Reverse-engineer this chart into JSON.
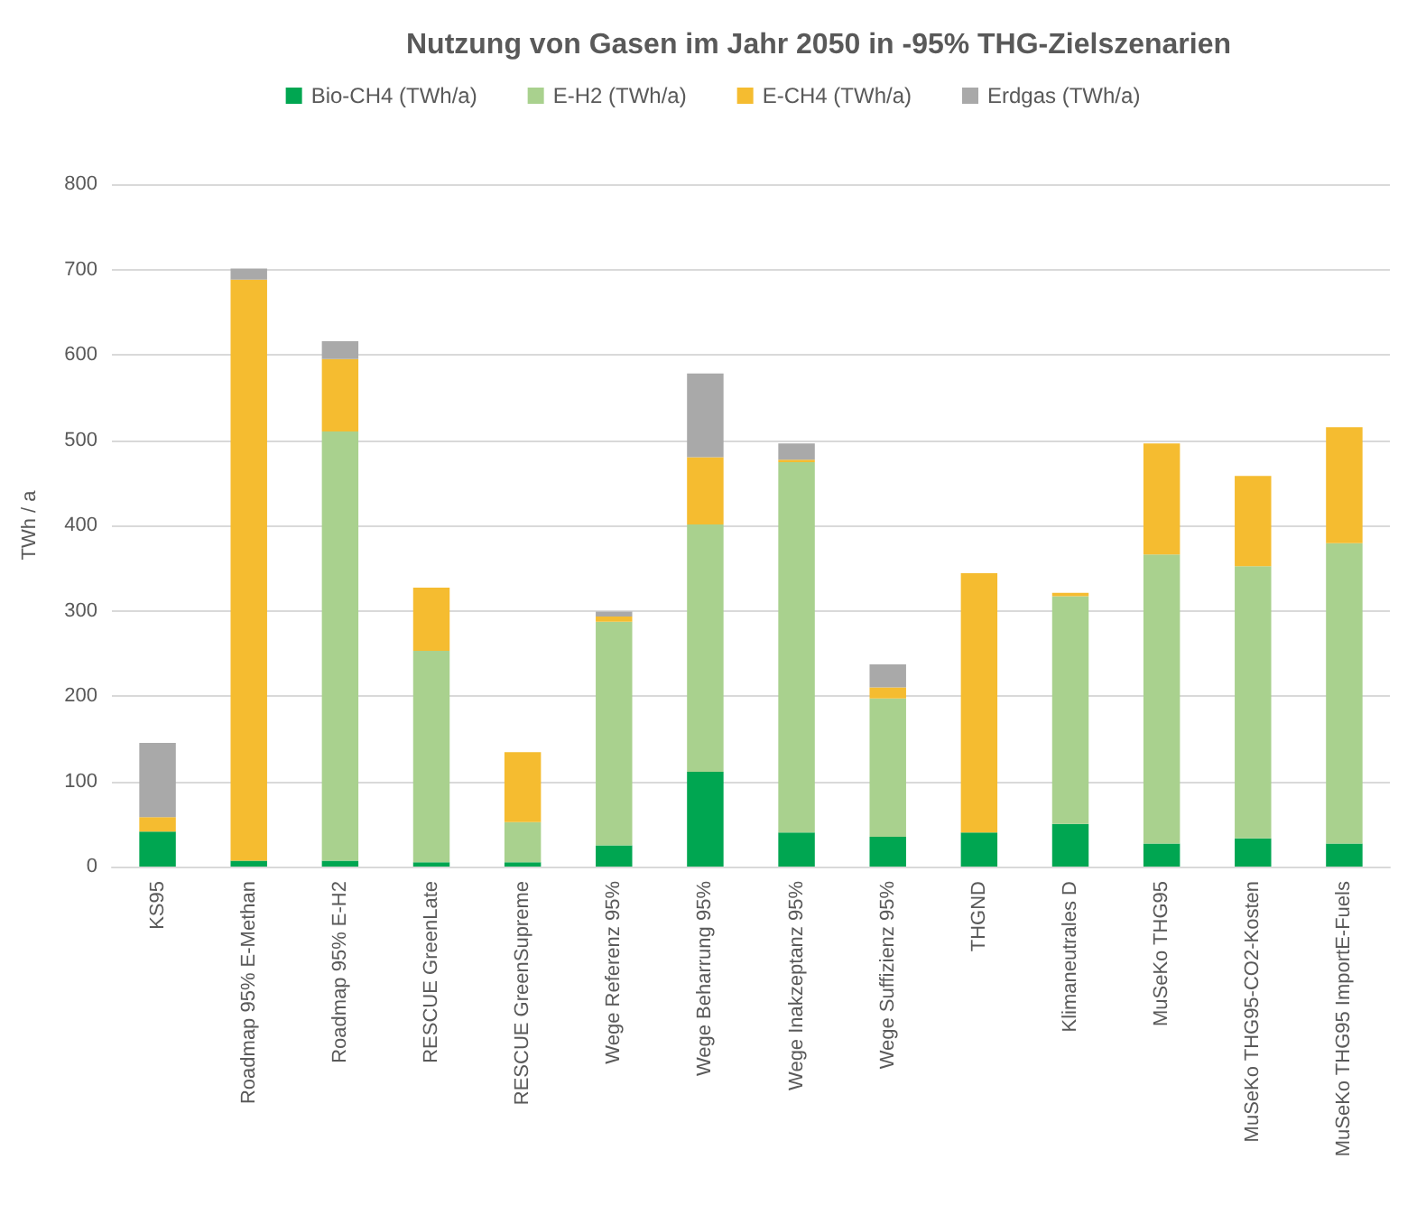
{
  "chart_data": {
    "type": "bar",
    "stacked": true,
    "title": "Nutzung von Gasen im Jahr 2050 in -95% THG-Zielszenarien",
    "ylabel": "TWh / a",
    "categories": [
      "KS95",
      "Roadmap 95% E-Methan",
      "Roadmap 95% E-H2",
      "RESCUE GreenLate",
      "RESCUE GreenSupreme",
      "Wege Referenz 95%",
      "Wege Beharrung 95%",
      "Wege Inakzeptanz 95%",
      "Wege Suffizienz 95%",
      "THGND",
      "Klimaneutrales D",
      "MuSeKo THG95",
      "MuSeKo THG95-CO2-Kosten",
      "MuSeKo THG95 ImportE-Fuels"
    ],
    "series": [
      {
        "name": "Bio-CH4 (TWh/a)",
        "color": "#00a651",
        "values": [
          41,
          7,
          7,
          5,
          5,
          25,
          111,
          40,
          35,
          40,
          50,
          27,
          33,
          27
        ]
      },
      {
        "name": "E-H2 (TWh/a)",
        "color": "#a9d18e",
        "values": [
          0,
          0,
          503,
          248,
          47,
          262,
          290,
          434,
          162,
          0,
          267,
          339,
          319,
          352
        ]
      },
      {
        "name": "E-CH4 (TWh/a)",
        "color": "#f5bc30",
        "values": [
          17,
          681,
          85,
          74,
          82,
          6,
          79,
          3,
          13,
          304,
          4,
          130,
          106,
          136
        ]
      },
      {
        "name": "Erdgas (TWh/a)",
        "color": "#a9a9a9",
        "values": [
          87,
          13,
          21,
          0,
          0,
          6,
          98,
          19,
          27,
          0,
          0,
          0,
          0,
          0
        ]
      }
    ],
    "ylim": [
      0,
      800
    ],
    "yticks": [
      0,
      100,
      200,
      300,
      400,
      500,
      600,
      700,
      800
    ],
    "grid": "y",
    "legend": "top"
  }
}
